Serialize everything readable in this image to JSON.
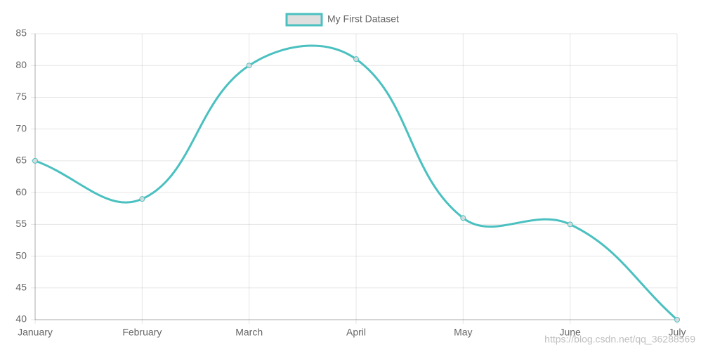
{
  "chart_data": {
    "type": "line",
    "categories": [
      "January",
      "February",
      "March",
      "April",
      "May",
      "June",
      "July"
    ],
    "series": [
      {
        "name": "My First Dataset",
        "color": "#4bc0c0",
        "values": [
          65,
          59,
          80,
          81,
          56,
          55,
          40
        ]
      }
    ],
    "ylim": [
      40,
      85
    ],
    "yticks": [
      40,
      45,
      50,
      55,
      60,
      65,
      70,
      75,
      80,
      85
    ],
    "grid": true,
    "legend": "top",
    "watermark": "https://blog.csdn.net/qq_36288569"
  }
}
